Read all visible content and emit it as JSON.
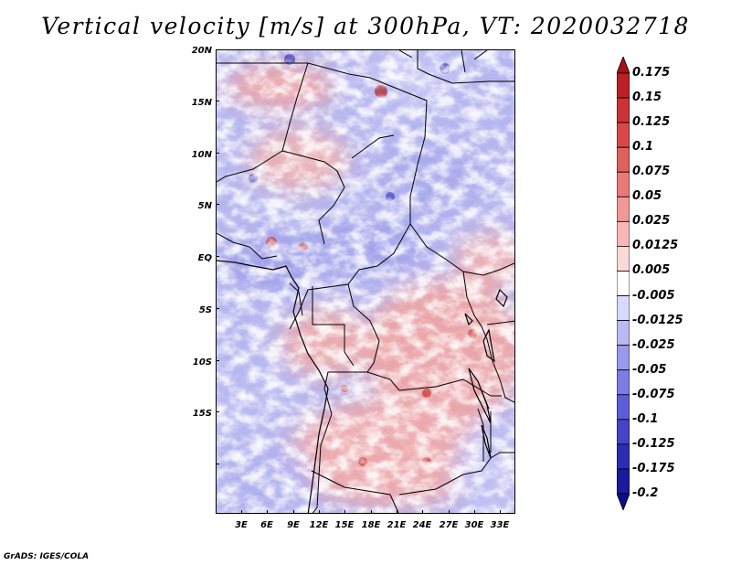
{
  "title": "Vertical velocity [m/s] at 300hPa, VT: 2020032718",
  "map": {
    "variable": "Vertical velocity",
    "units": "m/s",
    "level": "300hPa",
    "valid_time": "2020032718",
    "lat_labels": [
      "20N",
      "15N",
      "10N",
      "5N",
      "EQ",
      "5S",
      "10S",
      "15S"
    ],
    "lon_labels": [
      "3E",
      "6E",
      "9E",
      "12E",
      "15E",
      "18E",
      "21E",
      "24E",
      "27E",
      "30E",
      "33E"
    ]
  },
  "colorbar": {
    "levels": [
      "0.175",
      "0.15",
      "0.125",
      "0.1",
      "0.075",
      "0.05",
      "0.025",
      "0.0125",
      "0.005",
      "-0.005",
      "-0.0125",
      "-0.025",
      "-0.05",
      "-0.075",
      "-0.1",
      "-0.125",
      "-0.175",
      "-0.2"
    ],
    "colors": [
      "#a8101a",
      "#bd1f26",
      "#cc3333",
      "#d94848",
      "#e0605e",
      "#e87a78",
      "#f19896",
      "#f7b7b5",
      "#fcd9d8",
      "#ffffff",
      "#d9d9fa",
      "#babaf3",
      "#9a9aec",
      "#7c7ce4",
      "#5d5dd8",
      "#4444c8",
      "#2d2db4",
      "#1a1a9c",
      "#0d0d88"
    ]
  },
  "credit": "GrADS: IGES/COLA"
}
